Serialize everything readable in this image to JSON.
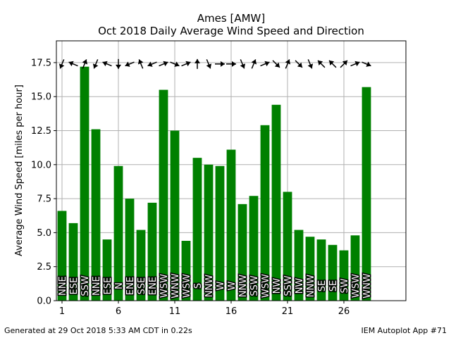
{
  "chart_data": {
    "type": "bar",
    "title": "Ames [AMW]",
    "subtitle": "Oct 2018 Daily Average Wind Speed and Direction",
    "xlabel": "",
    "ylabel": "Average Wind Speed [miles per hour]",
    "xlim": [
      0.5,
      31.5
    ],
    "ylim": [
      0,
      19.1
    ],
    "xticks": [
      1,
      6,
      11,
      16,
      21,
      26
    ],
    "yticks": [
      0.0,
      2.5,
      5.0,
      7.5,
      10.0,
      12.5,
      15.0,
      17.5
    ],
    "ytick_labels": [
      "0.0",
      "2.5",
      "5.0",
      "7.5",
      "10.0",
      "12.5",
      "15.0",
      "17.5"
    ],
    "grid": true,
    "bar_color": "#008000",
    "days": [
      1,
      2,
      3,
      4,
      5,
      6,
      7,
      8,
      9,
      10,
      11,
      12,
      13,
      14,
      15,
      16,
      17,
      18,
      19,
      20,
      21,
      22,
      23,
      24,
      25,
      26,
      27,
      28
    ],
    "values": [
      6.6,
      5.7,
      17.2,
      12.6,
      4.5,
      9.9,
      7.5,
      5.2,
      7.2,
      15.5,
      12.5,
      4.4,
      10.5,
      10.0,
      9.9,
      11.1,
      7.1,
      7.7,
      12.9,
      14.4,
      8.0,
      5.2,
      4.7,
      4.5,
      4.1,
      3.7,
      4.8,
      15.7
    ],
    "directions": [
      "NNE",
      "ESE",
      "SSW",
      "NNE",
      "ESE",
      "N",
      "ENE",
      "SSE",
      "ENE",
      "WSW",
      "WNW",
      "WSW",
      "S",
      "NNW",
      "W",
      "W",
      "NNW",
      "SSW",
      "WSW",
      "NW",
      "SSW",
      "NW",
      "NNW",
      "SE",
      "SE",
      "SW",
      "WSW",
      "WNW"
    ]
  },
  "footer": {
    "left": "Generated at 29 Oct 2018 5:33 AM CDT in 0.22s",
    "right": "IEM Autoplot App #71"
  }
}
